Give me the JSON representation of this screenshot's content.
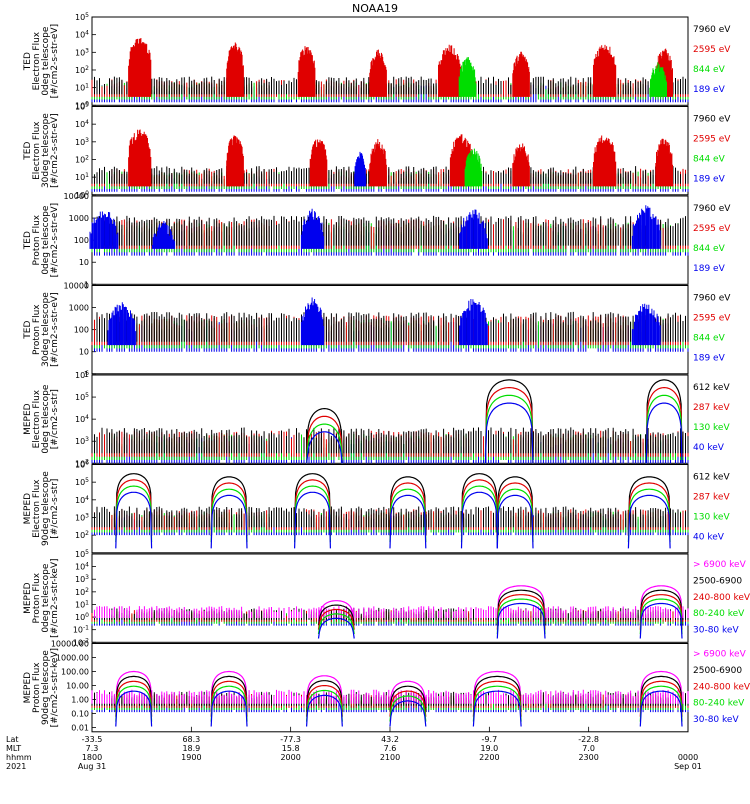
{
  "title": "NOAA19",
  "colors": {
    "black": "#000000",
    "red": "#e00000",
    "green": "#00dd00",
    "blue": "#0000ee",
    "magenta": "#ff00ff"
  },
  "chart_data": [
    {
      "type": "line",
      "ylog": true,
      "ylim": [
        1,
        100000
      ],
      "ylabel": [
        "TED",
        "Electron Flux",
        "0deg telescope",
        "[#/cm2-s-str-eV]"
      ],
      "yticks": [
        {
          "v": 1,
          "label": "10^0"
        },
        {
          "v": 10,
          "label": "10^1"
        },
        {
          "v": 100,
          "label": "10^2"
        },
        {
          "v": 1000,
          "label": "10^3"
        },
        {
          "v": 10000,
          "label": "10^4"
        },
        {
          "v": 100000,
          "label": "10^5"
        }
      ],
      "series": [
        {
          "name": "7960 eV",
          "color": "black"
        },
        {
          "name": "2595 eV",
          "color": "red"
        },
        {
          "name": "844 eV",
          "color": "green"
        },
        {
          "name": "189 eV",
          "color": "blue"
        }
      ],
      "bursts": [
        {
          "t": 0.08,
          "w": 0.04,
          "peak": 8000,
          "color": "red"
        },
        {
          "t": 0.24,
          "w": 0.03,
          "peak": 4000,
          "color": "red"
        },
        {
          "t": 0.36,
          "w": 0.03,
          "peak": 3000,
          "color": "red"
        },
        {
          "t": 0.48,
          "w": 0.03,
          "peak": 1500,
          "color": "red"
        },
        {
          "t": 0.6,
          "w": 0.04,
          "peak": 3000,
          "color": "red"
        },
        {
          "t": 0.72,
          "w": 0.03,
          "peak": 1200,
          "color": "red"
        },
        {
          "t": 0.86,
          "w": 0.04,
          "peak": 4000,
          "color": "red"
        },
        {
          "t": 0.96,
          "w": 0.03,
          "peak": 2000,
          "color": "red"
        },
        {
          "t": 0.63,
          "w": 0.03,
          "peak": 600,
          "color": "green"
        },
        {
          "t": 0.95,
          "w": 0.03,
          "peak": 300,
          "color": "green"
        }
      ],
      "base": [
        [
          3,
          20
        ]
      ]
    },
    {
      "type": "line",
      "ylog": true,
      "ylim": [
        1,
        100000
      ],
      "ylabel": [
        "TED",
        "Electron Flux",
        "30deg telescope",
        "[#/cm2-s-str-eV]"
      ],
      "yticks": [
        {
          "v": 1,
          "label": "10^0"
        },
        {
          "v": 10,
          "label": "10^1"
        },
        {
          "v": 100,
          "label": "10^2"
        },
        {
          "v": 1000,
          "label": "10^3"
        },
        {
          "v": 10000,
          "label": "10^4"
        },
        {
          "v": 100000,
          "label": "10^5"
        }
      ],
      "series": [
        {
          "name": "7960 eV",
          "color": "black"
        },
        {
          "name": "2595 eV",
          "color": "red"
        },
        {
          "name": "844 eV",
          "color": "green"
        },
        {
          "name": "189 eV",
          "color": "blue"
        }
      ],
      "bursts": [
        {
          "t": 0.08,
          "w": 0.04,
          "peak": 6000,
          "color": "red"
        },
        {
          "t": 0.24,
          "w": 0.03,
          "peak": 3000,
          "color": "red"
        },
        {
          "t": 0.38,
          "w": 0.03,
          "peak": 2000,
          "color": "red"
        },
        {
          "t": 0.48,
          "w": 0.03,
          "peak": 1500,
          "color": "red"
        },
        {
          "t": 0.62,
          "w": 0.04,
          "peak": 3000,
          "color": "red"
        },
        {
          "t": 0.72,
          "w": 0.03,
          "peak": 1000,
          "color": "red"
        },
        {
          "t": 0.86,
          "w": 0.04,
          "peak": 3000,
          "color": "red"
        },
        {
          "t": 0.96,
          "w": 0.03,
          "peak": 2000,
          "color": "red"
        },
        {
          "t": 0.45,
          "w": 0.02,
          "peak": 300,
          "color": "blue"
        },
        {
          "t": 0.64,
          "w": 0.03,
          "peak": 500,
          "color": "green"
        }
      ],
      "base": [
        [
          3,
          20
        ]
      ]
    },
    {
      "type": "line",
      "ylog": true,
      "ylim": [
        1,
        10000
      ],
      "ylabel": [
        "TED",
        "Proton Flux",
        "0deg telescope",
        "[#/cm2-s-str-eV]"
      ],
      "yticks": [
        {
          "v": 1,
          "label": "1"
        },
        {
          "v": 10,
          "label": "10"
        },
        {
          "v": 100,
          "label": "100"
        },
        {
          "v": 1000,
          "label": "1000"
        },
        {
          "v": 10000,
          "label": "10000"
        }
      ],
      "series": [
        {
          "name": "7960 eV",
          "color": "black"
        },
        {
          "name": "2595 eV",
          "color": "red"
        },
        {
          "name": "844 eV",
          "color": "green"
        },
        {
          "name": "189 eV",
          "color": "blue"
        }
      ],
      "bursts": [
        {
          "t": 0.02,
          "w": 0.05,
          "peak": 3000,
          "color": "blue"
        },
        {
          "t": 0.37,
          "w": 0.04,
          "peak": 3000,
          "color": "blue"
        },
        {
          "t": 0.64,
          "w": 0.05,
          "peak": 3000,
          "color": "blue"
        },
        {
          "t": 0.93,
          "w": 0.05,
          "peak": 4000,
          "color": "blue"
        },
        {
          "t": 0.12,
          "w": 0.04,
          "peak": 800,
          "color": "blue"
        }
      ],
      "base": [
        [
          40,
          600
        ]
      ]
    },
    {
      "type": "line",
      "ylog": true,
      "ylim": [
        1,
        10000
      ],
      "ylabel": [
        "TED",
        "Proton Flux",
        "30deg telescope",
        "[#/cm2-s-str-eV]"
      ],
      "yticks": [
        {
          "v": 1,
          "label": "1"
        },
        {
          "v": 10,
          "label": "10"
        },
        {
          "v": 100,
          "label": "100"
        },
        {
          "v": 1000,
          "label": "1000"
        },
        {
          "v": 10000,
          "label": "10000"
        }
      ],
      "series": [
        {
          "name": "7960 eV",
          "color": "black"
        },
        {
          "name": "2595 eV",
          "color": "red"
        },
        {
          "name": "844 eV",
          "color": "green"
        },
        {
          "name": "189 eV",
          "color": "blue"
        }
      ],
      "bursts": [
        {
          "t": 0.05,
          "w": 0.05,
          "peak": 2000,
          "color": "blue"
        },
        {
          "t": 0.37,
          "w": 0.04,
          "peak": 3000,
          "color": "blue"
        },
        {
          "t": 0.64,
          "w": 0.05,
          "peak": 3000,
          "color": "blue"
        },
        {
          "t": 0.93,
          "w": 0.05,
          "peak": 2000,
          "color": "blue"
        }
      ],
      "base": [
        [
          20,
          300
        ]
      ]
    },
    {
      "type": "line",
      "ylog": true,
      "ylim": [
        100,
        1000000
      ],
      "ylabel": [
        "MEPED",
        "Electron Flux",
        "0deg telescope",
        "[#/cm2-s-str]"
      ],
      "yticks": [
        {
          "v": 100,
          "label": "10^2"
        },
        {
          "v": 1000,
          "label": "10^3"
        },
        {
          "v": 10000,
          "label": "10^4"
        },
        {
          "v": 100000,
          "label": "10^5"
        },
        {
          "v": 1000000,
          "label": "10^6"
        }
      ],
      "series": [
        {
          "name": "612 keV",
          "color": "black"
        },
        {
          "name": "287 keV",
          "color": "red"
        },
        {
          "name": "130 keV",
          "color": "green"
        },
        {
          "name": "40 keV",
          "color": "blue"
        }
      ],
      "arcs": [
        {
          "t0": 0.36,
          "t1": 0.42,
          "peak": 30000
        },
        {
          "t0": 0.66,
          "t1": 0.74,
          "peak": 600000
        },
        {
          "t0": 0.93,
          "t1": 0.99,
          "peak": 600000
        }
      ],
      "base": [
        [
          200,
          2000
        ]
      ]
    },
    {
      "type": "line",
      "ylog": true,
      "ylim": [
        10,
        1000000
      ],
      "ylabel": [
        "MEPED",
        "Electron Flux",
        "90deg telescope",
        "[#/cm2-s-str]"
      ],
      "yticks": [
        {
          "v": 100,
          "label": "10^2"
        },
        {
          "v": 1000,
          "label": "10^3"
        },
        {
          "v": 10000,
          "label": "10^4"
        },
        {
          "v": 100000,
          "label": "10^5"
        },
        {
          "v": 1000000,
          "label": "10^6"
        }
      ],
      "series": [
        {
          "name": "612 keV",
          "color": "black"
        },
        {
          "name": "287 keV",
          "color": "red"
        },
        {
          "name": "130 keV",
          "color": "green"
        },
        {
          "name": "40 keV",
          "color": "blue"
        }
      ],
      "arcs": [
        {
          "t0": 0.04,
          "t1": 0.1,
          "peak": 300000
        },
        {
          "t0": 0.2,
          "t1": 0.26,
          "peak": 200000
        },
        {
          "t0": 0.34,
          "t1": 0.4,
          "peak": 300000
        },
        {
          "t0": 0.5,
          "t1": 0.56,
          "peak": 200000
        },
        {
          "t0": 0.62,
          "t1": 0.68,
          "peak": 300000
        },
        {
          "t0": 0.68,
          "t1": 0.74,
          "peak": 200000
        },
        {
          "t0": 0.9,
          "t1": 0.97,
          "peak": 200000
        }
      ],
      "base": [
        [
          200,
          2000
        ]
      ]
    },
    {
      "type": "line",
      "ylog": true,
      "ylim": [
        0.01,
        100000
      ],
      "ylabel": [
        "MEPED",
        "Proton Flux",
        "0deg telescope",
        "[#/cm2-s-str-keV]"
      ],
      "yticks": [
        {
          "v": 0.01,
          "label": "10^-2"
        },
        {
          "v": 0.1,
          "label": "10^-1"
        },
        {
          "v": 1,
          "label": "10^0"
        },
        {
          "v": 10,
          "label": "10^1"
        },
        {
          "v": 100,
          "label": "10^2"
        },
        {
          "v": 1000,
          "label": "10^3"
        },
        {
          "v": 10000,
          "label": "10^4"
        },
        {
          "v": 100000,
          "label": "10^5"
        }
      ],
      "series": [
        {
          "name": "> 6900 keV",
          "color": "magenta"
        },
        {
          "name": "2500-6900",
          "color": "black"
        },
        {
          "name": "240-800 keV",
          "color": "red"
        },
        {
          "name": "80-240 keV",
          "color": "green"
        },
        {
          "name": "30-80 keV",
          "color": "blue"
        }
      ],
      "arcs": [
        {
          "t0": 0.38,
          "t1": 0.44,
          "peak": 20
        },
        {
          "t0": 0.68,
          "t1": 0.76,
          "peak": 300
        },
        {
          "t0": 0.92,
          "t1": 0.99,
          "peak": 300
        }
      ],
      "base": [
        [
          0.5,
          3
        ]
      ]
    },
    {
      "type": "line",
      "ylog": true,
      "ylim": [
        0.005,
        10000
      ],
      "ylabel": [
        "MEPED",
        "Proton Flux",
        "90deg telescope",
        "[#/cm2-s-str-keV]"
      ],
      "yticks": [
        {
          "v": 0.01,
          "label": "0.01"
        },
        {
          "v": 0.1,
          "label": "0.10"
        },
        {
          "v": 1,
          "label": "1.00"
        },
        {
          "v": 10,
          "label": "10.00"
        },
        {
          "v": 100,
          "label": "100.00"
        },
        {
          "v": 1000,
          "label": "1000.00"
        },
        {
          "v": 10000,
          "label": "10000.00"
        }
      ],
      "series": [
        {
          "name": "> 6900 keV",
          "color": "magenta"
        },
        {
          "name": "2500-6900",
          "color": "black"
        },
        {
          "name": "240-800 keV",
          "color": "red"
        },
        {
          "name": "80-240 keV",
          "color": "green"
        },
        {
          "name": "30-80 keV",
          "color": "blue"
        }
      ],
      "arcs": [
        {
          "t0": 0.04,
          "t1": 0.1,
          "peak": 100
        },
        {
          "t0": 0.2,
          "t1": 0.26,
          "peak": 100
        },
        {
          "t0": 0.36,
          "t1": 0.42,
          "peak": 50
        },
        {
          "t0": 0.5,
          "t1": 0.56,
          "peak": 20
        },
        {
          "t0": 0.64,
          "t1": 0.72,
          "peak": 100
        },
        {
          "t0": 0.92,
          "t1": 0.99,
          "peak": 100
        }
      ],
      "base": [
        [
          0.3,
          2
        ]
      ]
    }
  ],
  "xaxis": {
    "row_labels": [
      "Lat",
      "MLT",
      "hhmm",
      "2021"
    ],
    "ticks": [
      {
        "t": 0.0,
        "lat": "-33.5",
        "mlt": "7.3",
        "hhmm": "1800",
        "date": "Aug 31"
      },
      {
        "t": 0.1667,
        "lat": "68.3",
        "mlt": "18.9",
        "hhmm": "1900",
        "date": ""
      },
      {
        "t": 0.3333,
        "lat": "-77.3",
        "mlt": "15.8",
        "hhmm": "2000",
        "date": ""
      },
      {
        "t": 0.5,
        "lat": "43.2",
        "mlt": "7.6",
        "hhmm": "2100",
        "date": ""
      },
      {
        "t": 0.6667,
        "lat": "-9.7",
        "mlt": "19.0",
        "hhmm": "2200",
        "date": ""
      },
      {
        "t": 0.8333,
        "lat": "-22.8",
        "mlt": "7.0",
        "hhmm": "2300",
        "date": ""
      },
      {
        "t": 1.0,
        "lat": "",
        "mlt": "",
        "hhmm": "0000",
        "date": "Sep 01"
      }
    ]
  }
}
